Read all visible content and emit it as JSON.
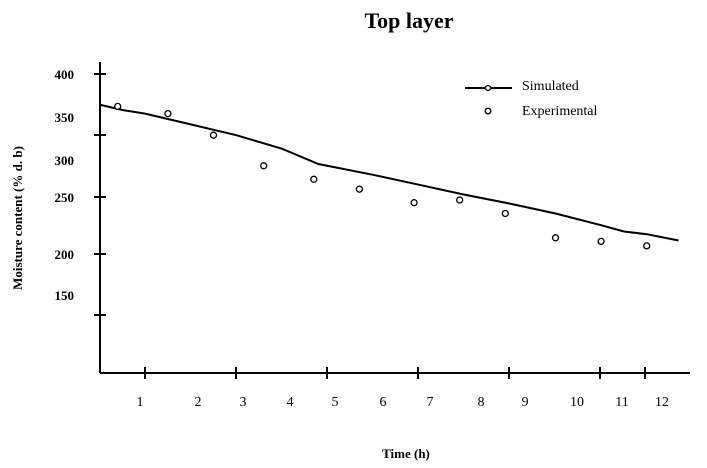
{
  "chart_data": {
    "type": "line",
    "title": "Top layer",
    "xlabel": "Time (h)",
    "ylabel": "Moisture content (% d. b)",
    "x_ticks": [
      "1",
      "2",
      "3",
      "4",
      "5",
      "6",
      "7",
      "8",
      "9",
      "10",
      "11",
      "12"
    ],
    "y_ticks": [
      "150",
      "200",
      "250",
      "300",
      "350",
      "400"
    ],
    "xlim": [
      0,
      12.8
    ],
    "ylim": [
      150,
      410
    ],
    "grid": false,
    "legend": "top-right",
    "series": [
      {
        "name": "Simulated",
        "kind": "line",
        "x": [
          0,
          0.5,
          1,
          2,
          3,
          4,
          4.8,
          6,
          7,
          8,
          9,
          10,
          11,
          11.5,
          12,
          12.7
        ],
        "y": [
          366,
          360,
          356,
          344,
          332,
          317,
          300,
          288,
          277,
          266,
          256,
          245,
          232,
          225,
          222,
          215
        ]
      },
      {
        "name": "Experimental",
        "kind": "scatter",
        "x": [
          0.4,
          1.5,
          2.5,
          3.6,
          4.7,
          5.7,
          6.9,
          7.9,
          8.9,
          10.0,
          11.0,
          12.0
        ],
        "y": [
          364,
          356,
          332,
          298,
          283,
          272,
          257,
          260,
          245,
          218,
          214,
          209
        ]
      }
    ]
  }
}
